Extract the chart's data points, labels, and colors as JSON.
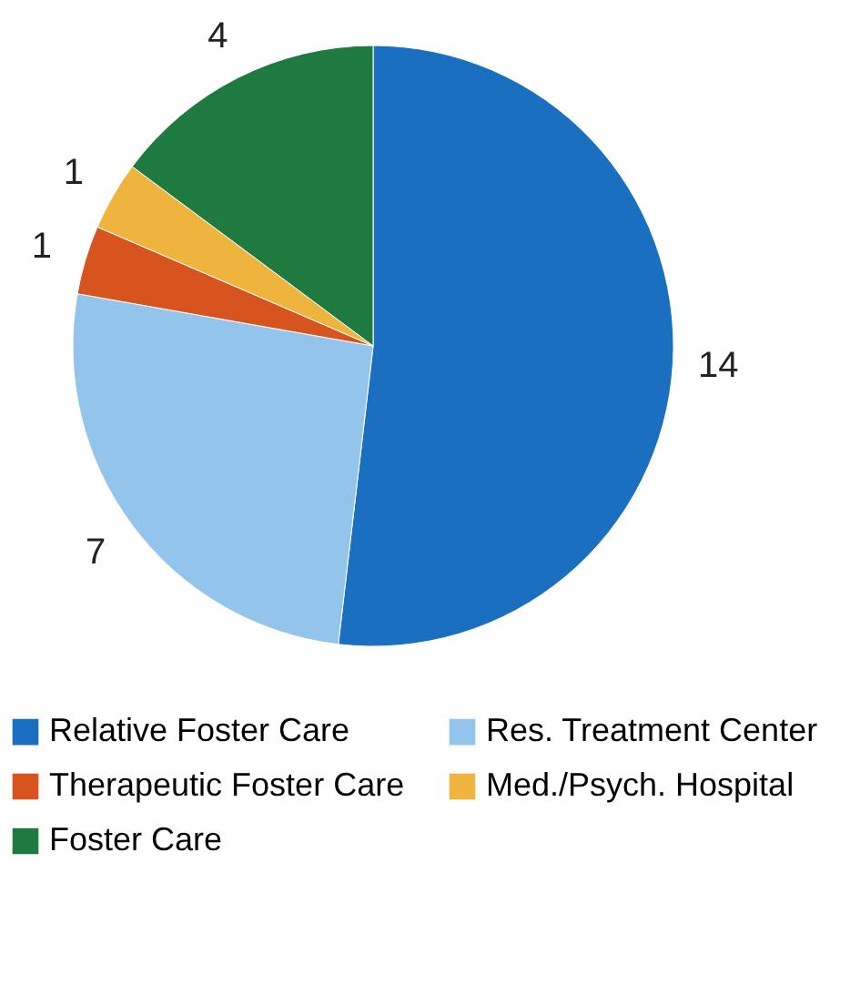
{
  "chart_data": {
    "type": "pie",
    "categories": [
      "Relative Foster Care",
      "Res. Treatment Center",
      "Therapeutic Foster Care",
      "Med./Psych. Hospital",
      "Foster Care"
    ],
    "values": [
      14,
      7,
      1,
      1,
      4
    ],
    "colors": [
      "#1b6fc0",
      "#93c5ec",
      "#d8541f",
      "#efb43d",
      "#1e7a3f"
    ],
    "data_labels": true,
    "legend": "bottom"
  }
}
